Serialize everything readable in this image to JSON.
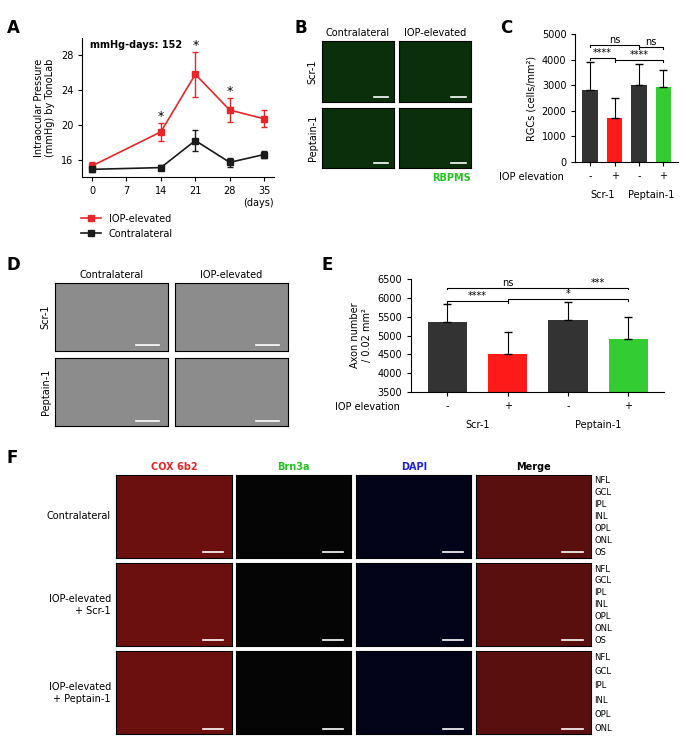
{
  "chart_data": [
    {
      "panel": "A",
      "type": "line",
      "x": [
        0,
        14,
        21,
        28,
        35
      ],
      "xlim": [
        -2,
        37
      ],
      "xticks": [
        0,
        7,
        14,
        21,
        28,
        35
      ],
      "ylim": [
        14,
        30
      ],
      "yticks": [
        16,
        20,
        24,
        28
      ],
      "xlabel": "(days)",
      "ylabel": "Intraocular Pressure\n(mmHg) by TonoLab",
      "series": [
        {
          "name": "IOP-elevated",
          "color": "#e8262a",
          "marker": "square",
          "values": [
            15.3,
            19.2,
            25.8,
            21.7,
            20.7
          ],
          "errors": [
            0.4,
            1.0,
            2.6,
            1.4,
            1.0
          ]
        },
        {
          "name": "Contralateral",
          "color": "#1a1a1a",
          "marker": "square",
          "values": [
            14.9,
            15.1,
            18.2,
            15.7,
            16.6
          ],
          "errors": [
            0.3,
            0.3,
            1.2,
            0.5,
            0.4
          ]
        }
      ],
      "annotations": [
        {
          "text": "mmHg-days: 152"
        },
        {
          "x": 14,
          "text": "*"
        },
        {
          "x": 21,
          "text": "*"
        },
        {
          "x": 28,
          "text": "*"
        }
      ],
      "legend": "upper left"
    },
    {
      "panel": "C",
      "type": "bar",
      "categories": [
        "-",
        "+",
        "-",
        "+"
      ],
      "values": [
        2820,
        1720,
        2990,
        2930
      ],
      "errors": [
        1100,
        800,
        850,
        680
      ],
      "colors": [
        "#333333",
        "#ff1a1a",
        "#333333",
        "#33cc33"
      ],
      "ylim": [
        0,
        5000
      ],
      "yticks": [
        0,
        1000,
        2000,
        3000,
        4000,
        5000
      ],
      "ylabel": "RGCs (cells/mm²)",
      "row_label": "IOP elevation",
      "groups": [
        {
          "name": "Scr-1",
          "categories": [
            0,
            1
          ]
        },
        {
          "name": "Peptain-1",
          "categories": [
            2,
            3
          ]
        }
      ],
      "comparisons": [
        {
          "pair": [
            0,
            1
          ],
          "text": "****"
        },
        {
          "pair": [
            1,
            3
          ],
          "text": "****"
        },
        {
          "pair": [
            0,
            2
          ],
          "text": "ns"
        },
        {
          "pair": [
            2,
            3
          ],
          "text": "ns"
        }
      ]
    },
    {
      "panel": "E",
      "type": "bar",
      "categories": [
        "-",
        "+",
        "-",
        "+"
      ],
      "values": [
        5350,
        4520,
        5400,
        4920
      ],
      "errors": [
        480,
        580,
        480,
        560
      ],
      "colors": [
        "#333333",
        "#ff1a1a",
        "#333333",
        "#33cc33"
      ],
      "ylim": [
        3500,
        6500
      ],
      "yticks": [
        3500,
        4000,
        4500,
        5000,
        5500,
        6000,
        6500
      ],
      "ylabel": "Axon number\n/ 0.02 mm²",
      "row_label": "IOP elevation",
      "groups": [
        {
          "name": "Scr-1",
          "categories": [
            0,
            1
          ]
        },
        {
          "name": "Peptain-1",
          "categories": [
            2,
            3
          ]
        }
      ],
      "comparisons": [
        {
          "pair": [
            0,
            1
          ],
          "text": "****"
        },
        {
          "pair": [
            1,
            3
          ],
          "text": "*"
        },
        {
          "pair": [
            0,
            2
          ],
          "text": "ns"
        },
        {
          "pair": [
            2,
            3
          ],
          "text": "***"
        }
      ]
    }
  ],
  "images": [
    {
      "panel": "B",
      "columns": [
        "Contralateral",
        "IOP-elevated"
      ],
      "rows": [
        "Scr-1",
        "Peptain-1"
      ],
      "stain": "RBPMS"
    },
    {
      "panel": "D",
      "columns": [
        "Contralateral",
        "IOP-elevated"
      ],
      "rows": [
        "Scr-1",
        "Peptain-1"
      ]
    },
    {
      "panel": "F",
      "columns": [
        "COX 6b2",
        "Brn3a",
        "DAPI",
        "Merge"
      ],
      "colors": [
        "#e8262a",
        "#22c322",
        "#2020e0",
        "#000000"
      ],
      "rows": [
        {
          "label": "Contralateral",
          "layers": [
            "NFL",
            "GCL",
            "IPL",
            "INL",
            "OPL",
            "ONL",
            "OS"
          ]
        },
        {
          "label": "IOP-elevated\n+ Scr-1",
          "layers": [
            "NFL",
            "GCL",
            "IPL",
            "INL",
            "OPL",
            "ONL",
            "OS"
          ]
        },
        {
          "label": "IOP-elevated\n+ Peptain-1",
          "layers": [
            "NFL",
            "GCL",
            "IPL",
            "INL",
            "OPL",
            "ONL"
          ]
        }
      ]
    }
  ]
}
